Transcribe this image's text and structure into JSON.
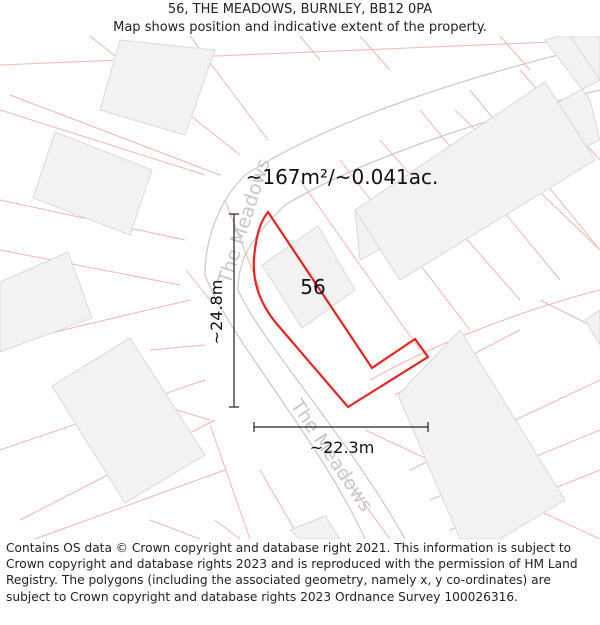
{
  "header": {
    "address": "56, THE MEADOWS, BURNLEY, BB12 0PA",
    "subtitle": "Map shows position and indicative extent of the property."
  },
  "map": {
    "area_label": "~167m²/~0.041ac.",
    "plot_number": "56",
    "road_name_1": "The Meadows",
    "road_name_2": "The Meadows",
    "height_label": "~24.8m",
    "width_label": "~22.3m",
    "colors": {
      "boundary": "#e8221e",
      "parcel_lines": "#f5b5b0",
      "building_fill": "#f2f2f2",
      "building_stroke": "#d9d9d9",
      "road_text": "#c8c8c8"
    }
  },
  "footer": {
    "copyright": "Contains OS data © Crown copyright and database right 2021. This information is subject to Crown copyright and database rights 2023 and is reproduced with the permission of HM Land Registry. The polygons (including the associated geometry, namely x, y co-ordinates) are subject to Crown copyright and database rights 2023 Ordnance Survey 100026316."
  }
}
